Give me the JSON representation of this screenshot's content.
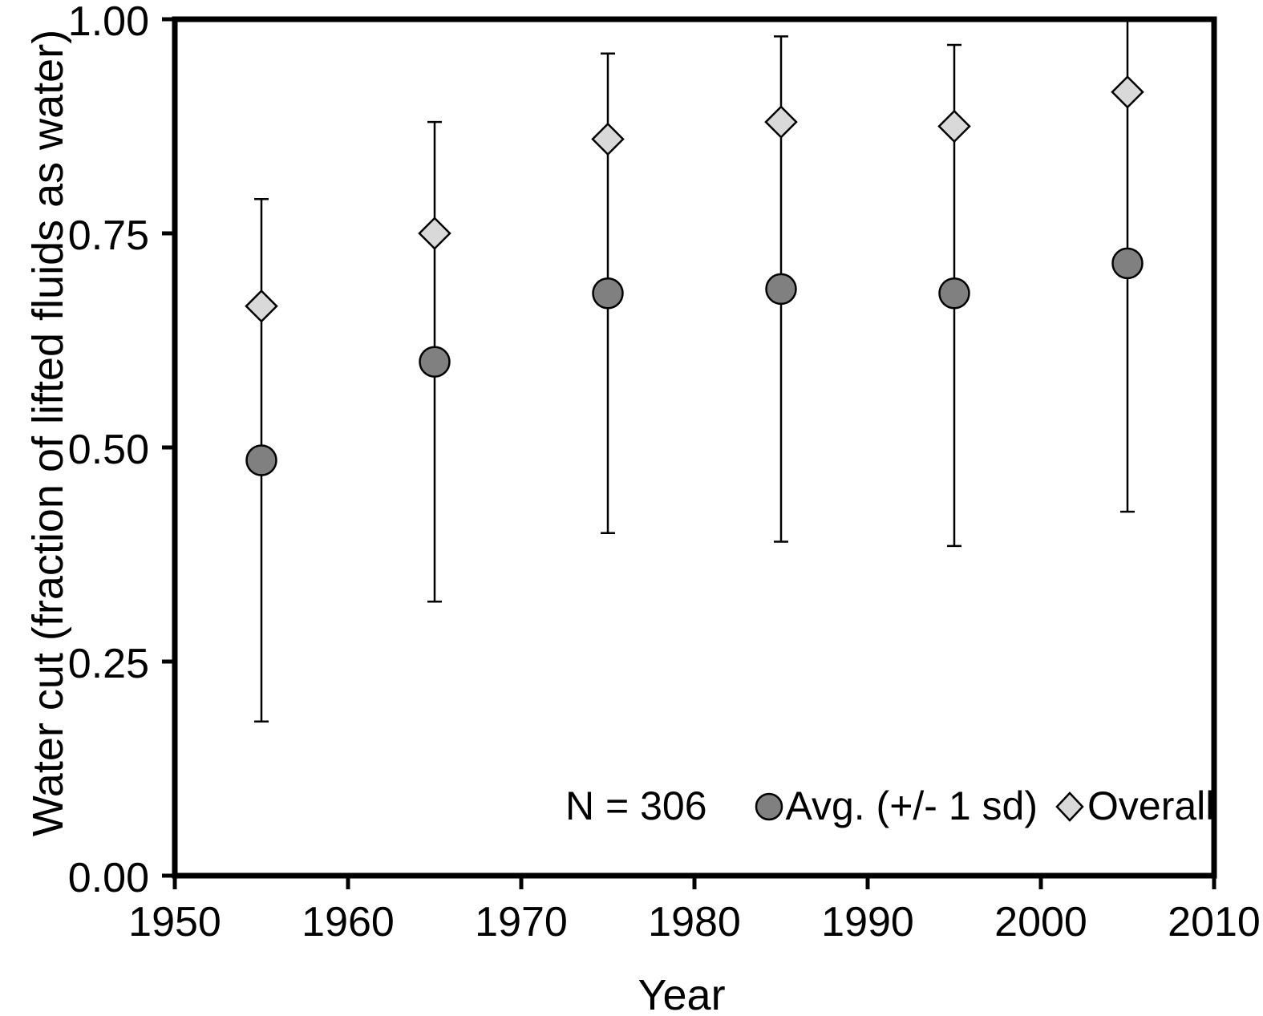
{
  "figure": {
    "background": "#ffffff",
    "text_color": "#000000"
  },
  "x_axis": {
    "title": "Year",
    "tick_labels": [
      "1950",
      "1960",
      "1970",
      "1980",
      "1990",
      "2000",
      "2010"
    ],
    "tick_values": [
      1950,
      1960,
      1970,
      1980,
      1990,
      2000,
      2010
    ],
    "min": 1950,
    "max": 2010
  },
  "y_axis": {
    "title": "Water cut (fraction of lifted fluids as water)",
    "tick_labels": [
      "1.00",
      "0.75",
      "0.50",
      "0.25",
      "0.00"
    ],
    "tick_values": [
      1.0,
      0.75,
      0.5,
      0.25,
      0.0
    ],
    "min": 0.0,
    "max": 1.0
  },
  "legend": {
    "n_label": "N = 306",
    "avg_label": "Avg. (+/- 1 sd)",
    "overall_label": "Overall",
    "avg_icon": "avg-circle-icon",
    "overall_icon": "overall-diamond-icon"
  },
  "colors": {
    "avg_marker_fill": "#808080",
    "overall_marker_fill": "#d9d9d9",
    "stroke": "#000000"
  },
  "chart_data": {
    "type": "scatter",
    "title": "",
    "xlabel": "Year",
    "ylabel": "Water cut (fraction of lifted fluids as water)",
    "xlim": [
      1950,
      2010
    ],
    "ylim": [
      0.0,
      1.0
    ],
    "grid": false,
    "legend_position": "bottom-inside",
    "annotation": "N = 306",
    "x": [
      1955,
      1965,
      1975,
      1985,
      1995,
      2005
    ],
    "series": [
      {
        "name": "Avg. (+/- 1 sd)",
        "marker": "circle",
        "fill": "#808080",
        "values": [
          0.485,
          0.6,
          0.68,
          0.685,
          0.68,
          0.715
        ],
        "err_low": [
          0.18,
          0.32,
          0.4,
          0.39,
          0.385,
          0.425
        ],
        "err_high": [
          0.79,
          0.88,
          0.96,
          0.98,
          0.97,
          1.0
        ],
        "err_high_cap_shown": [
          true,
          true,
          true,
          true,
          true,
          false
        ]
      },
      {
        "name": "Overall",
        "marker": "diamond",
        "fill": "#d9d9d9",
        "values": [
          0.665,
          0.75,
          0.86,
          0.88,
          0.875,
          0.915
        ]
      }
    ]
  }
}
